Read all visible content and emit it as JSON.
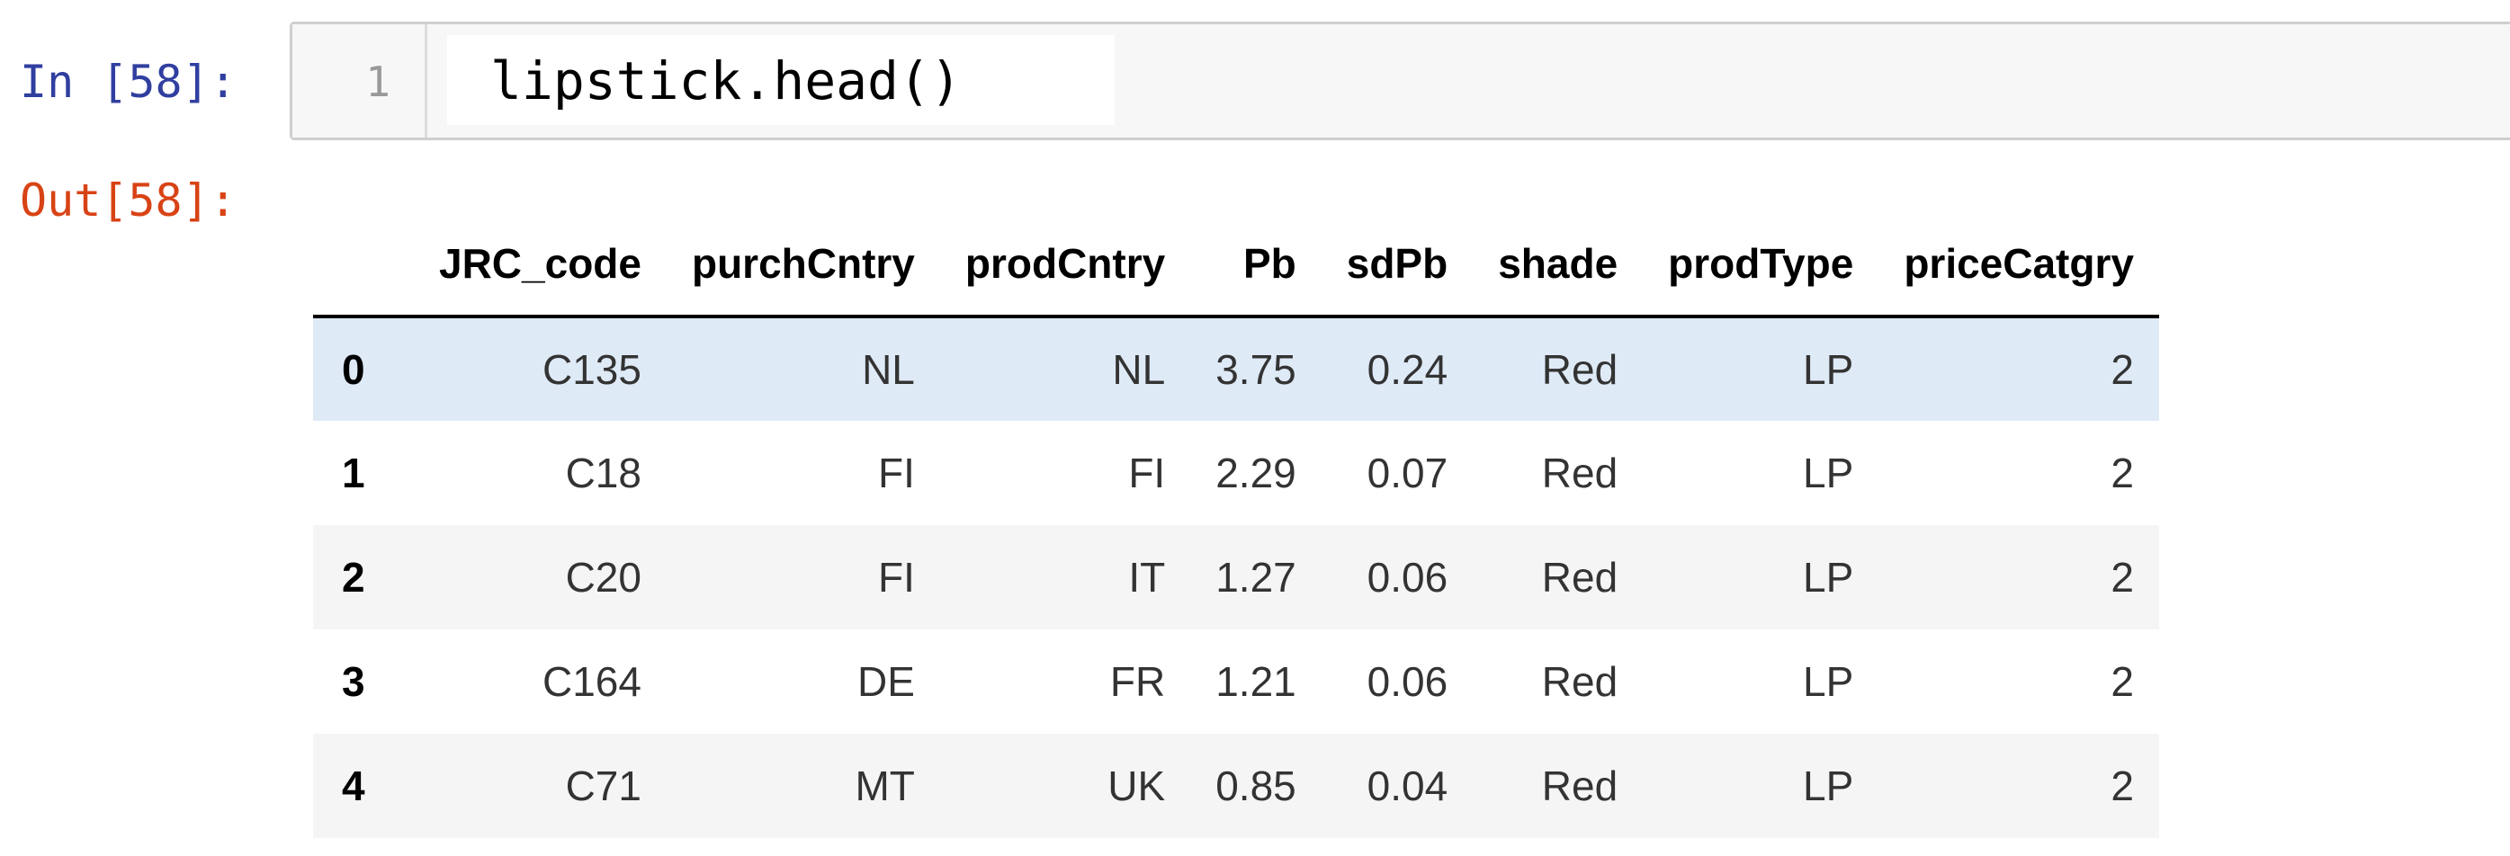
{
  "input_cell": {
    "prompt": "In [58]:",
    "line_number": "1",
    "code": "lipstick.head()"
  },
  "output_cell": {
    "prompt": "Out[58]:"
  },
  "dataframe": {
    "columns": [
      "JRC_code",
      "purchCntry",
      "prodCntry",
      "Pb",
      "sdPb",
      "shade",
      "prodType",
      "priceCatgry"
    ],
    "rows": [
      {
        "index": "0",
        "values": [
          "C135",
          "NL",
          "NL",
          "3.75",
          "0.24",
          "Red",
          "LP",
          "2"
        ]
      },
      {
        "index": "1",
        "values": [
          "C18",
          "FI",
          "FI",
          "2.29",
          "0.07",
          "Red",
          "LP",
          "2"
        ]
      },
      {
        "index": "2",
        "values": [
          "C20",
          "FI",
          "IT",
          "1.27",
          "0.06",
          "Red",
          "LP",
          "2"
        ]
      },
      {
        "index": "3",
        "values": [
          "C164",
          "DE",
          "FR",
          "1.21",
          "0.06",
          "Red",
          "LP",
          "2"
        ]
      },
      {
        "index": "4",
        "values": [
          "C71",
          "MT",
          "UK",
          "0.85",
          "0.04",
          "Red",
          "LP",
          "2"
        ]
      }
    ]
  },
  "colors": {
    "in_prompt": "#303f9f",
    "out_prompt": "#d84315",
    "row_highlight": "#dfeaf7",
    "row_stripe": "#f5f5f5",
    "cell_border": "#cfcfcf"
  }
}
